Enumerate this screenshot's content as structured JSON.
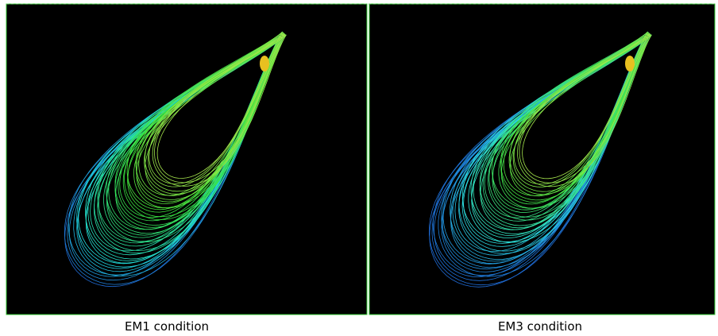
{
  "panels": [
    {
      "caption": "EM1 condition"
    },
    {
      "caption": "EM3 condition"
    }
  ]
}
